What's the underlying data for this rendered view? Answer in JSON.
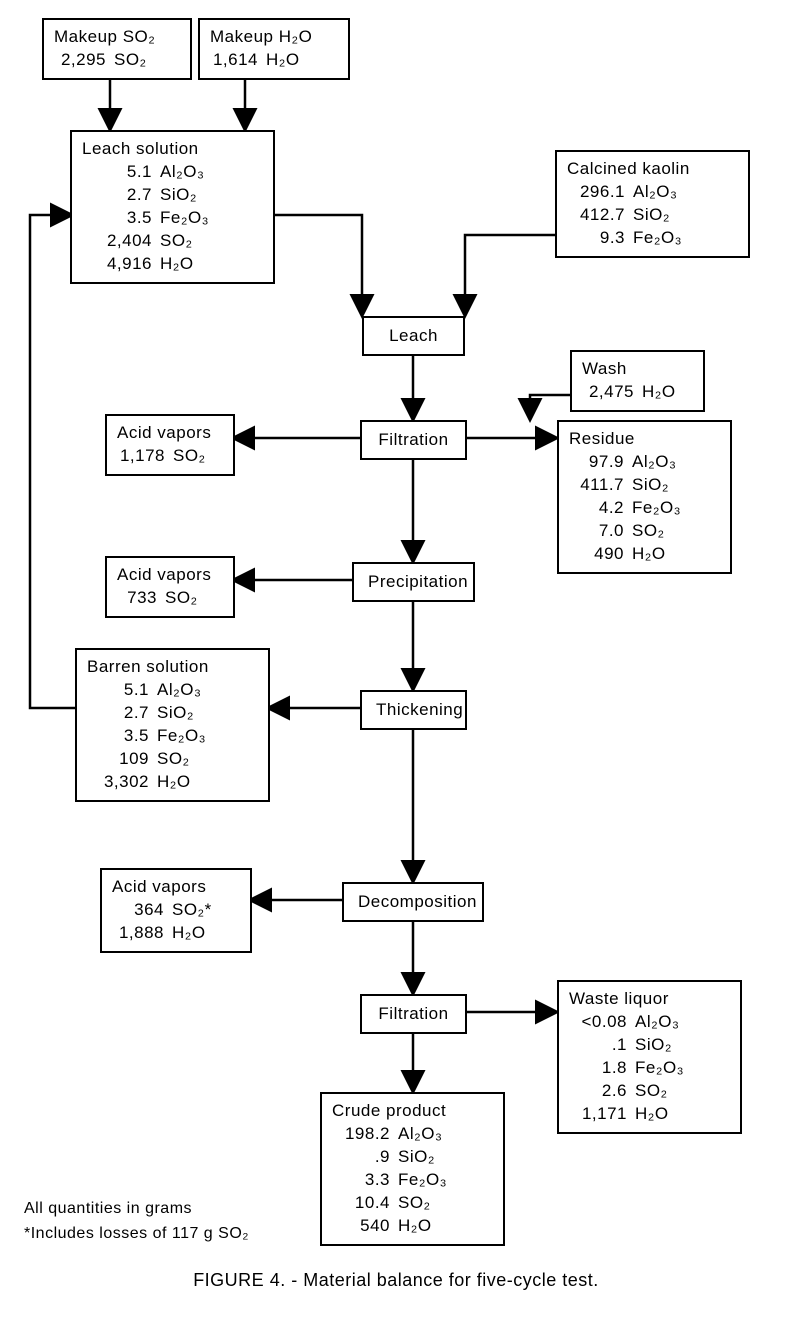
{
  "type": "flowchart",
  "background_color": "#ffffff",
  "border_color": "#000000",
  "boxes": {
    "makeup_so2": {
      "title": "Makeup SO₂",
      "rows": [
        [
          "2,295",
          "SO₂"
        ]
      ]
    },
    "makeup_h2o": {
      "title": "Makeup H₂O",
      "rows": [
        [
          "1,614",
          "H₂O"
        ]
      ]
    },
    "leach_solution": {
      "title": "Leach solution",
      "rows": [
        [
          "5.1",
          "Al₂O₃"
        ],
        [
          "2.7",
          "SiO₂"
        ],
        [
          "3.5",
          "Fe₂O₃"
        ],
        [
          "2,404",
          "SO₂"
        ],
        [
          "4,916",
          "H₂O"
        ]
      ]
    },
    "calcined_kaolin": {
      "title": "Calcined kaolin",
      "rows": [
        [
          "296.1",
          "Al₂O₃"
        ],
        [
          "412.7",
          "SiO₂"
        ],
        [
          "9.3",
          "Fe₂O₃"
        ]
      ]
    },
    "wash": {
      "title": "Wash",
      "rows": [
        [
          "2,475",
          "H₂O"
        ]
      ]
    },
    "acid_vapors_1": {
      "title": "Acid vapors",
      "rows": [
        [
          "1,178",
          "SO₂"
        ]
      ]
    },
    "residue": {
      "title": "Residue",
      "rows": [
        [
          "97.9",
          "Al₂O₃"
        ],
        [
          "411.7",
          "SiO₂"
        ],
        [
          "4.2",
          "Fe₂O₃"
        ],
        [
          "7.0",
          "SO₂"
        ],
        [
          "490",
          "H₂O"
        ]
      ]
    },
    "acid_vapors_2": {
      "title": "Acid vapors",
      "rows": [
        [
          "733",
          "SO₂"
        ]
      ]
    },
    "barren_solution": {
      "title": "Barren solution",
      "rows": [
        [
          "5.1",
          "Al₂O₃"
        ],
        [
          "2.7",
          "SiO₂"
        ],
        [
          "3.5",
          "Fe₂O₃"
        ],
        [
          "109",
          "SO₂"
        ],
        [
          "3,302",
          "H₂O"
        ]
      ]
    },
    "acid_vapors_3": {
      "title": "Acid vapors",
      "rows": [
        [
          "364",
          "SO₂*"
        ],
        [
          "1,888",
          "H₂O"
        ]
      ]
    },
    "waste_liquor": {
      "title": "Waste liquor",
      "rows": [
        [
          "<0.08",
          "Al₂O₃"
        ],
        [
          ".1",
          "SiO₂"
        ],
        [
          "1.8",
          "Fe₂O₃"
        ],
        [
          "2.6",
          "SO₂"
        ],
        [
          "1,171",
          "H₂O"
        ]
      ]
    },
    "crude_product": {
      "title": "Crude product",
      "rows": [
        [
          "198.2",
          "Al₂O₃"
        ],
        [
          ".9",
          "SiO₂"
        ],
        [
          "3.3",
          "Fe₂O₃"
        ],
        [
          "10.4",
          "SO₂"
        ],
        [
          "540",
          "H₂O"
        ]
      ]
    }
  },
  "processes": {
    "leach": "Leach",
    "filtration1": "Filtration",
    "precipitation": "Precipitation",
    "thickening": "Thickening",
    "decomposition": "Decomposition",
    "filtration2": "Filtration"
  },
  "footnote1": "All quantities in grams",
  "footnote2": "*Includes losses of 117 g SO₂",
  "caption": "FIGURE 4. - Material balance for five-cycle test.",
  "layout": {
    "col_widths": {
      "val": 58
    },
    "arrow_stroke": "#000000",
    "arrow_width": 2.5,
    "arrowhead_size": 10
  }
}
